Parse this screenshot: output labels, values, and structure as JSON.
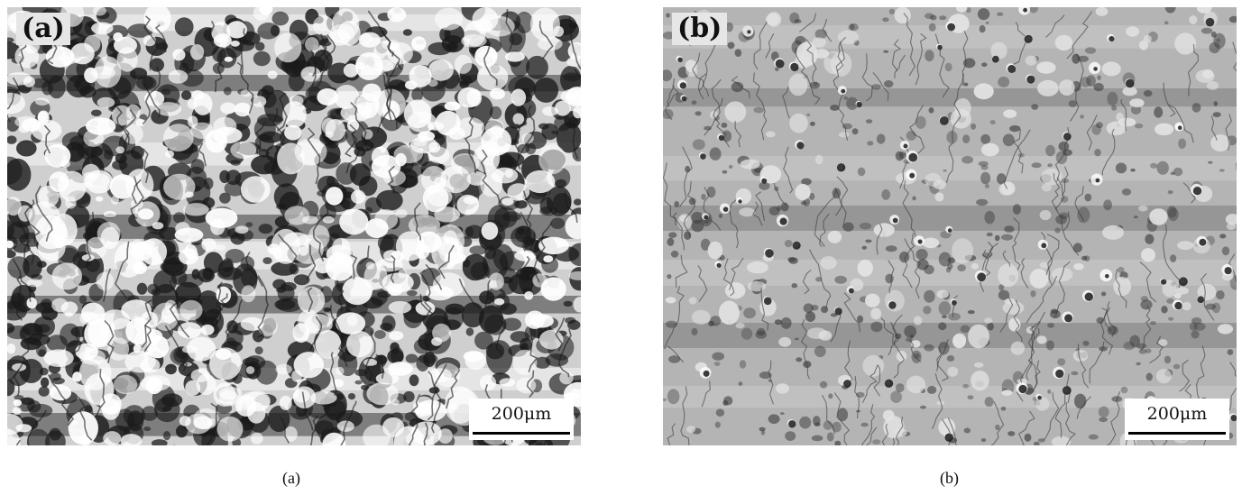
{
  "panels": [
    {
      "tag": "(a)",
      "scalebar": "200μm",
      "caption": "(a)",
      "tone": {
        "base": "#cfcfcf",
        "dark": "#1a1a1a",
        "light": "#ffffff"
      }
    },
    {
      "tag": "(b)",
      "scalebar": "200μm",
      "caption": "(b)",
      "tone": {
        "base": "#b4b4b4",
        "dark": "#3a3a3a",
        "light": "#e2e2e2"
      }
    }
  ]
}
